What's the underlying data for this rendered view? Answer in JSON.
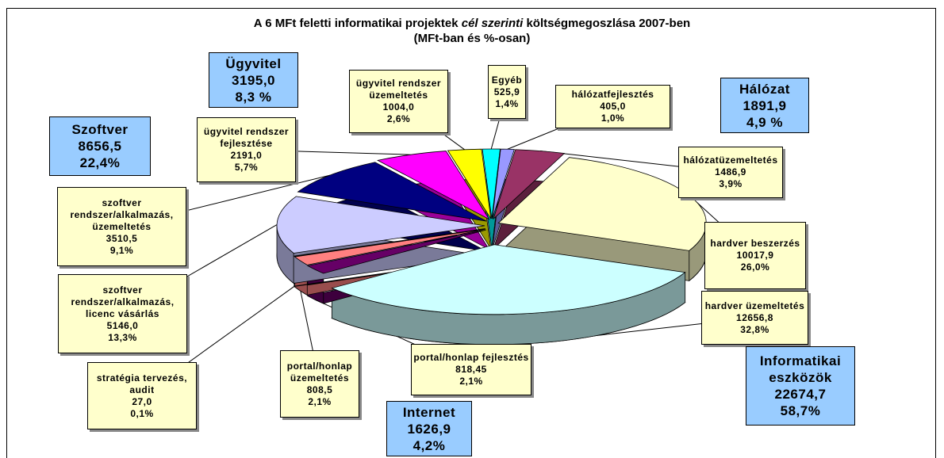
{
  "chart_data": {
    "type": "pie",
    "title_parts": [
      "A 6 MFt feletti informatikai projektek",
      "cél szerinti",
      "költségmegoszlása 2007-ben"
    ],
    "subtitle": "(MFt-ban és %-osan)",
    "categories": [
      "hálózatfejlesztés",
      "hálózatüzemeltetés",
      "hardver beszerzés",
      "hardver üzemeltetés",
      "portal/honlap fejlesztés",
      "portal/honlap üzemeltetés",
      "stratégia tervezés, audit",
      "szoftver rendszer/alkalmazás, licenc vásárlás",
      "szoftver rendszer/alkalmazás, üzemeltetés",
      "ügyvitel rendszer fejlesztése",
      "ügyvitel rendszer üzemeltetés",
      "Egyéb"
    ],
    "values": [
      405.0,
      1486.9,
      10017.9,
      12656.8,
      818.45,
      808.5,
      27.0,
      5146.0,
      3510.5,
      2191.0,
      1004.0,
      525.9
    ],
    "value_labels": [
      "405,0",
      "1486,9",
      "10017,9",
      "12656,8",
      "818,45",
      "808,5",
      "27,0",
      "5146,0",
      "3510,5",
      "2191,0",
      "1004,0",
      "525,9"
    ],
    "percents": [
      1.0,
      3.9,
      26.0,
      32.8,
      2.1,
      2.1,
      0.1,
      13.3,
      9.1,
      5.7,
      2.6,
      1.4
    ],
    "percent_labels": [
      "1,0%",
      "3,9%",
      "26,0%",
      "32,8%",
      "2,1%",
      "2,1%",
      "0,1%",
      "13,3%",
      "9,1%",
      "5,7%",
      "2,6%",
      "1,4%"
    ],
    "colors": [
      "#9999ff",
      "#993366",
      "#ffffcc",
      "#ccffff",
      "#660066",
      "#ff8080",
      "#0066cc",
      "#ccccff",
      "#000080",
      "#ff00ff",
      "#ffff00",
      "#00ffff"
    ],
    "groups": [
      {
        "name": "Ügyvitel",
        "value": 3195.0,
        "value_label": "3195,0",
        "percent": 8.3,
        "percent_label": "8,3 %"
      },
      {
        "name": "Szoftver",
        "value": 8656.5,
        "value_label": "8656,5",
        "percent": 22.4,
        "percent_label": "22,4%"
      },
      {
        "name": "Hálózat",
        "value": 1891.9,
        "value_label": "1891,9",
        "percent": 4.9,
        "percent_label": "4,9 %"
      },
      {
        "name": "Informatikai eszközök",
        "value": 22674.7,
        "value_label": "22674,7",
        "percent": 58.7,
        "percent_label": "58,7%"
      },
      {
        "name": "Internet",
        "value": 1626.9,
        "value_label": "1626,9",
        "percent": 4.2,
        "percent_label": "4,2%"
      }
    ]
  }
}
